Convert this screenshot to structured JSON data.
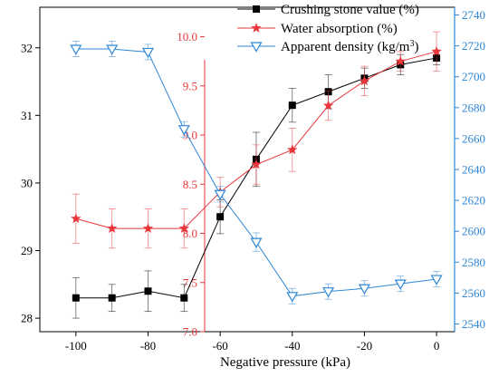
{
  "colors": {
    "black": "#000000",
    "red": "#e8363b",
    "blue": "#2e86d6",
    "frame": "#000000"
  },
  "chart_data": {
    "type": "line",
    "title": "",
    "xlabel": "Negative pressure (kPa)",
    "x": [
      -100,
      -90,
      -80,
      -70,
      -60,
      -50,
      -40,
      -30,
      -20,
      -10,
      0
    ],
    "xlim": [
      -110,
      5
    ],
    "xticks": [
      "-100",
      "-80",
      "-60",
      "-40",
      "-20",
      "0"
    ],
    "legend_position": "top-right",
    "axes": {
      "left": {
        "ylim": [
          27.8,
          32.6
        ],
        "ticks": [
          "28",
          "29",
          "30",
          "31",
          "32"
        ],
        "color": "black"
      },
      "mid": {
        "ylim": [
          7.0,
          10.3
        ],
        "ticks": [
          "7.0",
          "7.5",
          "8.0",
          "8.5",
          "9.0",
          "9.5",
          "10.0"
        ],
        "color": "red"
      },
      "right": {
        "ylim": [
          2535,
          2745
        ],
        "ticks": [
          "2540",
          "2560",
          "2580",
          "2600",
          "2620",
          "2640",
          "2660",
          "2680",
          "2700",
          "2720",
          "2740"
        ],
        "color": "blue"
      }
    },
    "series": [
      {
        "name": "Crushing stone value (%)",
        "axis": "left",
        "marker": "square",
        "values": [
          28.3,
          28.3,
          28.4,
          28.3,
          29.5,
          30.35,
          31.15,
          31.35,
          31.55,
          31.75,
          31.85
        ],
        "errors": [
          0.3,
          0.2,
          0.3,
          0.2,
          0.25,
          0.4,
          0.25,
          0.25,
          0.15,
          0.15,
          0.1
        ]
      },
      {
        "name": "Water absorption (%)",
        "axis": "mid",
        "marker": "star",
        "values": [
          8.15,
          8.05,
          8.05,
          8.05,
          8.42,
          8.7,
          8.85,
          9.3,
          9.55,
          9.75,
          9.85
        ],
        "errors": [
          0.25,
          0.2,
          0.2,
          0.2,
          0.15,
          0.2,
          0.22,
          0.15,
          0.15,
          0.1,
          0.2
        ]
      },
      {
        "name": "Apparent density (kg/m",
        "name_sup": "3",
        "name_tail": ")",
        "axis": "right",
        "marker": "triangle-down",
        "values": [
          2718,
          2718,
          2716,
          2666,
          2624,
          2593,
          2558,
          2561,
          2563,
          2566,
          2569
        ],
        "errors": [
          5,
          5,
          5,
          5,
          5,
          6,
          5,
          5,
          5,
          5,
          5
        ]
      }
    ]
  }
}
